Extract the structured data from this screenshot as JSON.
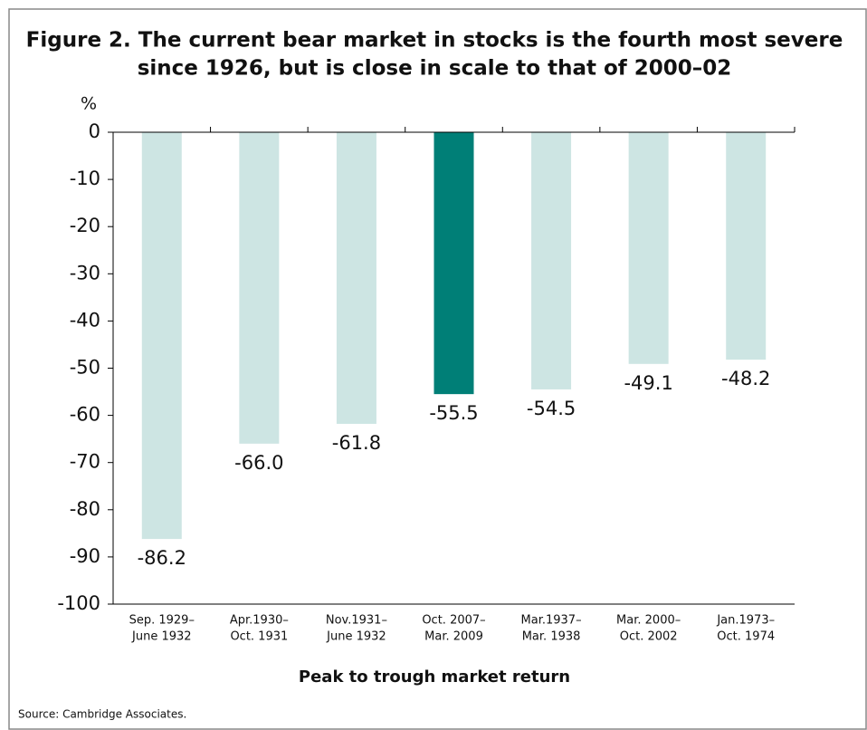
{
  "chart_data": {
    "type": "bar",
    "title": [
      "Figure 2. The current bear market in stocks is the fourth most severe",
      "since 1926, but is close in scale to that of 2000–02"
    ],
    "y_unit": "%",
    "x_label": "Peak to trough market return",
    "source": "Source: Cambridge Associates.",
    "categories": [
      [
        "Sep. 1929–",
        "June 1932"
      ],
      [
        "Apr.1930–",
        "Oct. 1931"
      ],
      [
        "Nov.1931–",
        "June 1932"
      ],
      [
        "Oct. 2007–",
        "Mar. 2009"
      ],
      [
        "Mar.1937–",
        "Mar. 1938"
      ],
      [
        "Mar. 2000–",
        "Oct. 2002"
      ],
      [
        "Jan.1973–",
        "Oct. 1974"
      ]
    ],
    "values": [
      -86.2,
      -66.0,
      -61.8,
      -55.5,
      -54.5,
      -49.1,
      -48.2
    ],
    "value_labels": [
      "-86.2",
      "-66.0",
      "-61.8",
      "-55.5",
      "-54.5",
      "-49.1",
      "-48.2"
    ],
    "colors": [
      "#cde5e3",
      "#cde5e3",
      "#cde5e3",
      "#007f77",
      "#cde5e3",
      "#cde5e3",
      "#cde5e3"
    ],
    "ylim": [
      -100,
      0
    ],
    "yticks": [
      0,
      -10,
      -20,
      -30,
      -40,
      -50,
      -60,
      -70,
      -80,
      -90,
      -100
    ]
  }
}
